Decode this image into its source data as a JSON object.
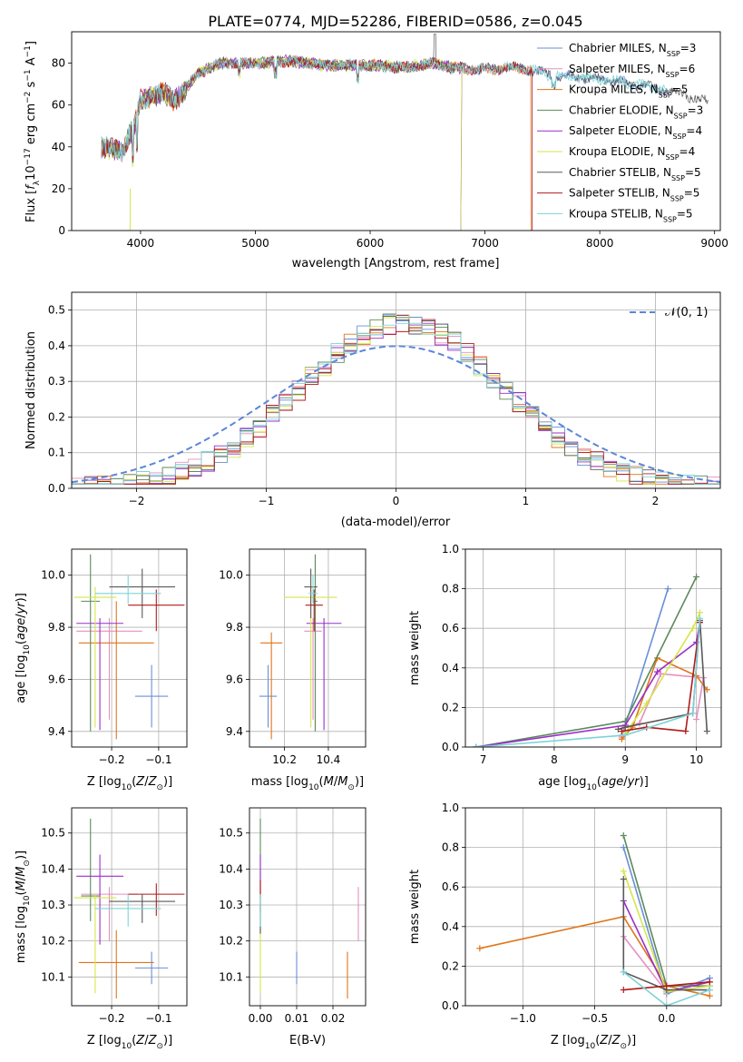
{
  "figure": {
    "title": "PLATE=0774, MJD=52286, FIBERID=0586, z=0.045"
  },
  "colors": {
    "Chabrier MILES": "#6b8fd6",
    "Salpeter MILES": "#e58fc1",
    "Kroupa MILES": "#e0751a",
    "Chabrier ELODIE": "#5c8a5c",
    "Salpeter ELODIE": "#9b2fc9",
    "Kroupa ELODIE": "#d6e64a",
    "Chabrier STELIB": "#5a5a5a",
    "Salpeter STELIB": "#b01b1b",
    "Kroupa STELIB": "#7dd3d8"
  },
  "chart_data": [
    {
      "id": "spectrum",
      "type": "line",
      "xlabel": "wavelength [Angstrom, rest frame]",
      "ylabel": "Flux [f_λ 10^-17 erg cm^-2 s^-1 A^-1]",
      "xlim": [
        3400,
        9050
      ],
      "ylim": [
        0,
        95
      ],
      "xticks": [
        4000,
        5000,
        6000,
        7000,
        8000,
        9000
      ],
      "yticks": [
        0,
        20,
        40,
        60,
        80
      ],
      "grid": false,
      "legend_position": "top-right",
      "legend": [
        {
          "name": "Chabrier MILES",
          "nssp": "3"
        },
        {
          "name": "Salpeter MILES",
          "nssp": "6"
        },
        {
          "name": "Kroupa MILES",
          "nssp": "5"
        },
        {
          "name": "Chabrier ELODIE",
          "nssp": "3"
        },
        {
          "name": "Salpeter ELODIE",
          "nssp": "4"
        },
        {
          "name": "Kroupa ELODIE",
          "nssp": "4"
        },
        {
          "name": "Chabrier STELIB",
          "nssp": "5"
        },
        {
          "name": "Salpeter STELIB",
          "nssp": "5"
        },
        {
          "name": "Kroupa STELIB",
          "nssp": "5"
        }
      ],
      "continuum": {
        "x": [
          3660,
          3750,
          3850,
          3900,
          3950,
          4000,
          4100,
          4200,
          4300,
          4500,
          4700,
          5000,
          5300,
          5600,
          6000,
          6300,
          6560,
          6700,
          7000,
          7300,
          7600,
          7900,
          8200,
          8500,
          8800,
          8950
        ],
        "y": [
          40,
          39,
          38,
          45,
          50,
          63,
          64,
          66,
          62,
          75,
          80,
          80,
          81,
          79,
          79,
          78,
          80,
          78,
          77,
          78,
          74,
          73,
          71,
          68,
          64,
          61
        ]
      },
      "series_extents": [
        {
          "name": "Chabrier MILES",
          "x": [
            3660,
            8600
          ]
        },
        {
          "name": "Salpeter MILES",
          "x": [
            3660,
            7410
          ]
        },
        {
          "name": "Kroupa MILES",
          "x": [
            3660,
            7400
          ]
        },
        {
          "name": "Chabrier ELODIE",
          "x": [
            3660,
            6800
          ]
        },
        {
          "name": "Salpeter ELODIE",
          "x": [
            3660,
            6800
          ]
        },
        {
          "name": "Kroupa ELODIE",
          "x": [
            3660,
            6800
          ]
        },
        {
          "name": "Chabrier STELIB",
          "x": [
            3660,
            8950
          ]
        },
        {
          "name": "Salpeter STELIB",
          "x": [
            3660,
            7410
          ]
        },
        {
          "name": "Kroupa STELIB",
          "x": [
            3660,
            8600
          ]
        }
      ],
      "features": [
        {
          "x": 3910,
          "y_drop": 0
        },
        {
          "x": 6563,
          "y_peak": 94
        },
        {
          "x": 6790,
          "y_drop": 0
        },
        {
          "x": 7410,
          "y_drop": 0
        }
      ]
    },
    {
      "id": "residuals",
      "type": "histogram",
      "xlabel": "(data-model)/error",
      "ylabel": "Normed distribution",
      "xlim": [
        -2.5,
        2.5
      ],
      "ylim": [
        0,
        0.55
      ],
      "xticks": [
        -2,
        -1,
        0,
        1,
        2
      ],
      "yticks": [
        0.0,
        0.1,
        0.2,
        0.3,
        0.4,
        0.5
      ],
      "grid": true,
      "legend_position": "top-right",
      "gaussian_label": "𝒩(0, 1)",
      "bin_width": 0.1,
      "bin_start": -2.5
    },
    {
      "id": "age_vs_Z",
      "type": "errorbar",
      "xlabel": "Z [log10(Z/Z⊙)]",
      "ylabel": "age [log10(age/yr)]",
      "xlim": [
        -0.285,
        -0.04
      ],
      "ylim": [
        9.34,
        10.1
      ],
      "xticks": [
        -0.2,
        -0.1
      ],
      "yticks": [
        9.4,
        9.6,
        9.8,
        10.0
      ],
      "grid": true,
      "points": [
        {
          "name": "Chabrier MILES",
          "x": -0.115,
          "y": 9.535,
          "xerr": [
            0.035,
            0.035
          ],
          "yerr": [
            0.12,
            0.12
          ]
        },
        {
          "name": "Salpeter MILES",
          "x": -0.205,
          "y": 9.785,
          "xerr": [
            0.07,
            0.07
          ],
          "yerr": [
            0.34,
            0.05
          ]
        },
        {
          "name": "Kroupa MILES",
          "x": -0.19,
          "y": 9.74,
          "xerr": [
            0.08,
            0.08
          ],
          "yerr": [
            0.37,
            0.16
          ]
        },
        {
          "name": "Chabrier ELODIE",
          "x": -0.245,
          "y": 9.9,
          "xerr": [
            0.02,
            0.02
          ],
          "yerr": [
            0.5,
            0.18
          ]
        },
        {
          "name": "Salpeter ELODIE",
          "x": -0.225,
          "y": 9.815,
          "xerr": [
            0.05,
            0.05
          ],
          "yerr": [
            0.41,
            0.02
          ]
        },
        {
          "name": "Kroupa ELODIE",
          "x": -0.235,
          "y": 9.915,
          "xerr": [
            0.045,
            0.045
          ],
          "yerr": [
            0.5,
            0.04
          ]
        },
        {
          "name": "Chabrier STELIB",
          "x": -0.135,
          "y": 9.955,
          "xerr": [
            0.07,
            0.07
          ],
          "yerr": [
            0.12,
            0.07
          ]
        },
        {
          "name": "Salpeter STELIB",
          "x": -0.105,
          "y": 9.885,
          "xerr": [
            0.06,
            0.06
          ],
          "yerr": [
            0.1,
            0.06
          ]
        },
        {
          "name": "Kroupa STELIB",
          "x": -0.165,
          "y": 9.93,
          "xerr": [
            0.07,
            0.07
          ],
          "yerr": [
            0.04,
            0.07
          ]
        }
      ]
    },
    {
      "id": "age_vs_mass",
      "type": "errorbar",
      "xlabel": "mass [log10(M/M⊙)]",
      "ylabel": "",
      "xlim": [
        10.04,
        10.57
      ],
      "ylim": [
        9.34,
        10.1
      ],
      "xticks": [
        10.2,
        10.4
      ],
      "yticks": [
        9.4,
        9.6,
        9.8,
        10.0
      ],
      "grid": true,
      "points": [
        {
          "name": "Chabrier MILES",
          "x": 10.125,
          "y": 9.535,
          "xerr": [
            0.04,
            0.04
          ],
          "yerr": [
            0.12,
            0.12
          ]
        },
        {
          "name": "Salpeter MILES",
          "x": 10.33,
          "y": 9.785,
          "xerr": [
            0.04,
            0.04
          ],
          "yerr": [
            0.34,
            0.05
          ]
        },
        {
          "name": "Kroupa MILES",
          "x": 10.14,
          "y": 9.74,
          "xerr": [
            0.05,
            0.05
          ],
          "yerr": [
            0.37,
            0.04
          ]
        },
        {
          "name": "Chabrier ELODIE",
          "x": 10.34,
          "y": 9.9,
          "xerr": [
            0.01,
            0.01
          ],
          "yerr": [
            0.5,
            0.18
          ]
        },
        {
          "name": "Salpeter ELODIE",
          "x": 10.38,
          "y": 9.815,
          "xerr": [
            0.08,
            0.08
          ],
          "yerr": [
            0.41,
            0.02
          ]
        },
        {
          "name": "Kroupa ELODIE",
          "x": 10.32,
          "y": 9.915,
          "xerr": [
            0.12,
            0.12
          ],
          "yerr": [
            0.5,
            0.04
          ]
        },
        {
          "name": "Chabrier STELIB",
          "x": 10.32,
          "y": 9.955,
          "xerr": [
            0.03,
            0.03
          ],
          "yerr": [
            0.12,
            0.07
          ]
        },
        {
          "name": "Salpeter STELIB",
          "x": 10.335,
          "y": 9.885,
          "xerr": [
            0.04,
            0.04
          ],
          "yerr": [
            0.1,
            0.06
          ]
        },
        {
          "name": "Kroupa STELIB",
          "x": 10.33,
          "y": 9.93,
          "xerr": [
            0.02,
            0.02
          ],
          "yerr": [
            0.04,
            0.07
          ]
        }
      ]
    },
    {
      "id": "massweight_vs_age",
      "type": "line",
      "xlabel": "age [log10(age/yr)]",
      "ylabel": "mass weight",
      "xlim": [
        6.75,
        10.35
      ],
      "ylim": [
        0,
        1.0
      ],
      "xticks": [
        7,
        8,
        9,
        10
      ],
      "yticks": [
        0.0,
        0.2,
        0.4,
        0.6,
        0.8,
        1.0
      ],
      "grid": true,
      "series": [
        {
          "name": "Chabrier MILES",
          "x": [
            8.95,
            9.0,
            9.6
          ],
          "y": [
            0.06,
            0.11,
            0.8
          ]
        },
        {
          "name": "Salpeter MILES",
          "x": [
            8.95,
            9.0,
            9.2,
            9.5,
            10.1,
            10.0
          ],
          "y": [
            0.05,
            0.1,
            0.12,
            0.37,
            0.35,
            0.14
          ]
        },
        {
          "name": "Kroupa MILES",
          "x": [
            8.95,
            9.1,
            9.45,
            10.0,
            10.15
          ],
          "y": [
            0.04,
            0.1,
            0.45,
            0.36,
            0.29
          ]
        },
        {
          "name": "Chabrier ELODIE",
          "x": [
            6.9,
            9.0,
            10.0
          ],
          "y": [
            0.0,
            0.13,
            0.86
          ]
        },
        {
          "name": "Salpeter ELODIE",
          "x": [
            6.9,
            9.0,
            9.45,
            10.0,
            10.05
          ],
          "y": [
            0.0,
            0.11,
            0.38,
            0.53,
            0.63
          ]
        },
        {
          "name": "Kroupa ELODIE",
          "x": [
            9.0,
            9.3,
            9.95,
            10.05
          ],
          "y": [
            0.07,
            0.22,
            0.6,
            0.68
          ]
        },
        {
          "name": "Chabrier STELIB",
          "x": [
            8.9,
            9.0,
            9.95,
            10.05,
            10.15
          ],
          "y": [
            0.09,
            0.1,
            0.17,
            0.64,
            0.08
          ]
        },
        {
          "name": "Salpeter STELIB",
          "x": [
            8.95,
            9.3,
            9.85,
            10.05
          ],
          "y": [
            0.08,
            0.1,
            0.08,
            0.63
          ]
        },
        {
          "name": "Kroupa STELIB",
          "x": [
            6.9,
            9.0,
            9.95,
            10.05
          ],
          "y": [
            0.0,
            0.06,
            0.17,
            0.65
          ]
        }
      ]
    },
    {
      "id": "mass_vs_Z",
      "type": "errorbar",
      "xlabel": "Z [log10(Z/Z⊙)]",
      "ylabel": "mass [log10(M/M⊙)]",
      "xlim": [
        -0.285,
        -0.04
      ],
      "ylim": [
        10.02,
        10.57
      ],
      "xticks": [
        -0.2,
        -0.1
      ],
      "yticks": [
        10.1,
        10.2,
        10.3,
        10.4,
        10.5
      ],
      "grid": true,
      "points": [
        {
          "name": "Chabrier MILES",
          "x": -0.115,
          "y": 10.125,
          "xerr": [
            0.035,
            0.035
          ],
          "yerr": [
            0.045,
            0.045
          ]
        },
        {
          "name": "Salpeter MILES",
          "x": -0.205,
          "y": 10.33,
          "xerr": [
            0.06,
            0.06
          ],
          "yerr": [
            0.13,
            0.02
          ]
        },
        {
          "name": "Kroupa MILES",
          "x": -0.19,
          "y": 10.14,
          "xerr": [
            0.08,
            0.08
          ],
          "yerr": [
            0.1,
            0.09
          ]
        },
        {
          "name": "Chabrier ELODIE",
          "x": -0.245,
          "y": 10.325,
          "xerr": [
            0.02,
            0.02
          ],
          "yerr": [
            0.07,
            0.215
          ]
        },
        {
          "name": "Salpeter ELODIE",
          "x": -0.225,
          "y": 10.38,
          "xerr": [
            0.05,
            0.05
          ],
          "yerr": [
            0.19,
            0.06
          ]
        },
        {
          "name": "Kroupa ELODIE",
          "x": -0.235,
          "y": 10.32,
          "xerr": [
            0.045,
            0.045
          ],
          "yerr": [
            0.265,
            0.01
          ]
        },
        {
          "name": "Chabrier STELIB",
          "x": -0.135,
          "y": 10.31,
          "xerr": [
            0.07,
            0.07
          ],
          "yerr": [
            0.06,
            0.02
          ]
        },
        {
          "name": "Salpeter STELIB",
          "x": -0.105,
          "y": 10.33,
          "xerr": [
            0.06,
            0.06
          ],
          "yerr": [
            0.06,
            0.03
          ]
        },
        {
          "name": "Kroupa STELIB",
          "x": -0.165,
          "y": 10.29,
          "xerr": [
            0.07,
            0.07
          ],
          "yerr": [
            0.05,
            0.04
          ]
        }
      ]
    },
    {
      "id": "mass_vs_EBV",
      "type": "errorbar",
      "xlabel": "E(B-V)",
      "ylabel": "",
      "xlim": [
        -0.003,
        0.029
      ],
      "ylim": [
        10.02,
        10.57
      ],
      "xticks": [
        0.0,
        0.01,
        0.02
      ],
      "yticks": [
        10.1,
        10.2,
        10.3,
        10.4,
        10.5
      ],
      "grid": true,
      "points": [
        {
          "name": "Chabrier MILES",
          "x": 0.01,
          "y": 10.125,
          "yerr": [
            0.045,
            0.045
          ]
        },
        {
          "name": "Salpeter MILES",
          "x": 0.027,
          "y": 10.33,
          "yerr": [
            0.13,
            0.02
          ]
        },
        {
          "name": "Kroupa MILES",
          "x": 0.024,
          "y": 10.14,
          "yerr": [
            0.1,
            0.03
          ]
        },
        {
          "name": "Chabrier ELODIE",
          "x": 0.0,
          "y": 10.325,
          "yerr": [
            0.1,
            0.215
          ]
        },
        {
          "name": "Salpeter ELODIE",
          "x": 0.0,
          "y": 10.38,
          "yerr": [
            0.06,
            0.06
          ]
        },
        {
          "name": "Kroupa ELODIE",
          "x": 0.0,
          "y": 10.32,
          "yerr": [
            0.265,
            0.01
          ]
        },
        {
          "name": "Chabrier STELIB",
          "x": 0.0,
          "y": 10.25,
          "yerr": [
            0.03,
            0.05
          ]
        },
        {
          "name": "Salpeter STELIB",
          "x": 0.0,
          "y": 10.33,
          "yerr": [
            0.05,
            0.04
          ]
        },
        {
          "name": "Kroupa STELIB",
          "x": 0.0,
          "y": 10.29,
          "yerr": [
            0.05,
            0.04
          ]
        }
      ]
    },
    {
      "id": "massweight_vs_Z",
      "type": "line",
      "xlabel": "Z [log10(Z/Z⊙)]",
      "ylabel": "mass weight",
      "xlim": [
        -1.4,
        0.38
      ],
      "ylim": [
        0,
        1.0
      ],
      "xticks": [
        -1.0,
        -0.5,
        0.0
      ],
      "yticks": [
        0.0,
        0.2,
        0.4,
        0.6,
        0.8,
        1.0
      ],
      "grid": true,
      "series": [
        {
          "name": "Chabrier MILES",
          "x": [
            -0.3,
            0.0,
            0.3
          ],
          "y": [
            0.8,
            0.06,
            0.14
          ]
        },
        {
          "name": "Salpeter MILES",
          "x": [
            -0.3,
            0.0,
            0.3
          ],
          "y": [
            0.35,
            0.07,
            0.1
          ]
        },
        {
          "name": "Kroupa MILES",
          "x": [
            -1.3,
            -0.3,
            0.0,
            0.3
          ],
          "y": [
            0.29,
            0.45,
            0.1,
            0.05
          ]
        },
        {
          "name": "Chabrier ELODIE",
          "x": [
            -0.3,
            0.0,
            0.3
          ],
          "y": [
            0.86,
            0.1,
            0.1
          ]
        },
        {
          "name": "Salpeter ELODIE",
          "x": [
            -0.3,
            0.0,
            0.3
          ],
          "y": [
            0.53,
            0.07,
            0.12
          ]
        },
        {
          "name": "Kroupa ELODIE",
          "x": [
            -0.3,
            0.0,
            0.3
          ],
          "y": [
            0.68,
            0.07,
            0.1
          ]
        },
        {
          "name": "Chabrier STELIB",
          "x": [
            -0.3,
            -0.3,
            0.0,
            0.3
          ],
          "y": [
            0.64,
            0.17,
            0.08,
            0.08
          ]
        },
        {
          "name": "Salpeter STELIB",
          "x": [
            -0.3,
            0.0,
            0.3
          ],
          "y": [
            0.08,
            0.1,
            0.12
          ]
        },
        {
          "name": "Kroupa STELIB",
          "x": [
            -0.3,
            0.0,
            0.3
          ],
          "y": [
            0.17,
            0.0,
            0.08
          ]
        }
      ]
    }
  ]
}
